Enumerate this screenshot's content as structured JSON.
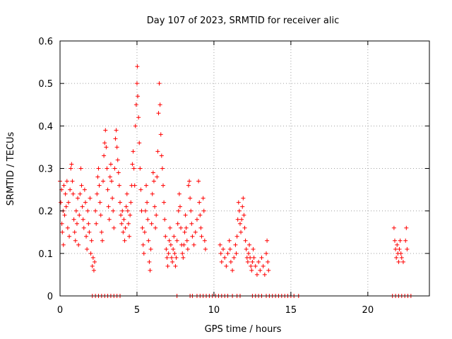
{
  "chart_data": {
    "type": "scatter",
    "title": "Day 107 of 2023, SRMTID for receiver alic",
    "xlabel": "GPS time / hours",
    "ylabel": "SRMTID / TECUs",
    "xlim": [
      0,
      24
    ],
    "ylim": [
      0,
      0.6
    ],
    "x_ticks": [
      0,
      5,
      10,
      15,
      20
    ],
    "x_tick_labels": [
      "0",
      "5",
      "10",
      "15",
      "20"
    ],
    "y_ticks": [
      0,
      0.1,
      0.2,
      0.3,
      0.4,
      0.5,
      0.6
    ],
    "y_tick_labels": [
      "0",
      "0.1",
      "0.2",
      "0.3",
      "0.4",
      "0.5",
      "0.6"
    ],
    "grid": true,
    "marker": "+",
    "color": "#ff0000",
    "series": [
      {
        "name": "SRMTID",
        "points": [
          [
            0.0,
            0.27
          ],
          [
            0.05,
            0.22
          ],
          [
            0.1,
            0.25
          ],
          [
            0.12,
            0.17
          ],
          [
            0.15,
            0.15
          ],
          [
            0.2,
            0.2
          ],
          [
            0.22,
            0.12
          ],
          [
            0.25,
            0.26
          ],
          [
            0.3,
            0.19
          ],
          [
            0.35,
            0.24
          ],
          [
            0.4,
            0.21
          ],
          [
            0.45,
            0.27
          ],
          [
            0.5,
            0.16
          ],
          [
            0.55,
            0.22
          ],
          [
            0.6,
            0.14
          ],
          [
            0.65,
            0.25
          ],
          [
            0.7,
            0.3
          ],
          [
            0.75,
            0.31
          ],
          [
            0.8,
            0.27
          ],
          [
            0.85,
            0.24
          ],
          [
            0.9,
            0.18
          ],
          [
            0.95,
            0.15
          ],
          [
            1.0,
            0.13
          ],
          [
            1.05,
            0.2
          ],
          [
            1.1,
            0.17
          ],
          [
            1.15,
            0.23
          ],
          [
            1.2,
            0.12
          ],
          [
            1.25,
            0.19
          ],
          [
            1.3,
            0.24
          ],
          [
            1.35,
            0.3
          ],
          [
            1.4,
            0.26
          ],
          [
            1.45,
            0.21
          ],
          [
            1.5,
            0.18
          ],
          [
            1.55,
            0.16
          ],
          [
            1.6,
            0.25
          ],
          [
            1.65,
            0.22
          ],
          [
            1.7,
            0.14
          ],
          [
            1.75,
            0.11
          ],
          [
            1.8,
            0.2
          ],
          [
            1.85,
            0.17
          ],
          [
            1.9,
            0.15
          ],
          [
            1.95,
            0.23
          ],
          [
            2.0,
            0.1
          ],
          [
            2.05,
            0.13
          ],
          [
            2.1,
            0.07
          ],
          [
            2.15,
            0.09
          ],
          [
            2.2,
            0.06
          ],
          [
            2.25,
            0.08
          ],
          [
            2.3,
            0.2
          ],
          [
            2.35,
            0.17
          ],
          [
            2.4,
            0.24
          ],
          [
            2.45,
            0.28
          ],
          [
            2.5,
            0.3
          ],
          [
            2.55,
            0.26
          ],
          [
            2.6,
            0.22
          ],
          [
            2.65,
            0.19
          ],
          [
            2.7,
            0.15
          ],
          [
            2.75,
            0.13
          ],
          [
            2.8,
            0.27
          ],
          [
            2.85,
            0.33
          ],
          [
            2.9,
            0.36
          ],
          [
            2.95,
            0.39
          ],
          [
            3.0,
            0.35
          ],
          [
            3.05,
            0.3
          ],
          [
            3.1,
            0.25
          ],
          [
            3.15,
            0.21
          ],
          [
            3.2,
            0.18
          ],
          [
            3.25,
            0.28
          ],
          [
            3.3,
            0.31
          ],
          [
            3.35,
            0.27
          ],
          [
            3.4,
            0.23
          ],
          [
            3.45,
            0.2
          ],
          [
            3.5,
            0.16
          ],
          [
            3.55,
            0.3
          ],
          [
            3.6,
            0.37
          ],
          [
            3.65,
            0.39
          ],
          [
            3.7,
            0.35
          ],
          [
            3.75,
            0.32
          ],
          [
            3.8,
            0.29
          ],
          [
            3.85,
            0.26
          ],
          [
            3.9,
            0.22
          ],
          [
            3.95,
            0.19
          ],
          [
            4.0,
            0.17
          ],
          [
            4.05,
            0.2
          ],
          [
            4.1,
            0.15
          ],
          [
            4.15,
            0.18
          ],
          [
            4.2,
            0.13
          ],
          [
            4.25,
            0.16
          ],
          [
            4.3,
            0.21
          ],
          [
            4.35,
            0.24
          ],
          [
            4.4,
            0.2
          ],
          [
            4.45,
            0.17
          ],
          [
            4.5,
            0.14
          ],
          [
            4.55,
            0.19
          ],
          [
            4.6,
            0.22
          ],
          [
            4.65,
            0.26
          ],
          [
            4.7,
            0.31
          ],
          [
            4.75,
            0.34
          ],
          [
            4.8,
            0.3
          ],
          [
            4.85,
            0.26
          ],
          [
            4.9,
            0.4
          ],
          [
            4.95,
            0.45
          ],
          [
            5.0,
            0.5
          ],
          [
            5.02,
            0.54
          ],
          [
            5.05,
            0.47
          ],
          [
            5.1,
            0.42
          ],
          [
            5.15,
            0.36
          ],
          [
            5.2,
            0.3
          ],
          [
            5.25,
            0.25
          ],
          [
            5.3,
            0.2
          ],
          [
            5.35,
            0.16
          ],
          [
            5.4,
            0.12
          ],
          [
            5.45,
            0.1
          ],
          [
            5.5,
            0.15
          ],
          [
            5.55,
            0.2
          ],
          [
            5.6,
            0.26
          ],
          [
            5.65,
            0.22
          ],
          [
            5.7,
            0.18
          ],
          [
            5.75,
            0.13
          ],
          [
            5.8,
            0.08
          ],
          [
            5.85,
            0.06
          ],
          [
            5.9,
            0.11
          ],
          [
            5.95,
            0.17
          ],
          [
            6.0,
            0.24
          ],
          [
            6.05,
            0.29
          ],
          [
            6.1,
            0.27
          ],
          [
            6.15,
            0.21
          ],
          [
            6.2,
            0.16
          ],
          [
            6.25,
            0.19
          ],
          [
            6.3,
            0.28
          ],
          [
            6.35,
            0.34
          ],
          [
            6.4,
            0.43
          ],
          [
            6.45,
            0.5
          ],
          [
            6.5,
            0.45
          ],
          [
            6.55,
            0.38
          ],
          [
            6.6,
            0.33
          ],
          [
            6.65,
            0.3
          ],
          [
            6.7,
            0.26
          ],
          [
            6.75,
            0.22
          ],
          [
            6.8,
            0.18
          ],
          [
            6.85,
            0.14
          ],
          [
            6.9,
            0.11
          ],
          [
            6.95,
            0.09
          ],
          [
            7.0,
            0.07
          ],
          [
            7.05,
            0.1
          ],
          [
            7.1,
            0.13
          ],
          [
            7.15,
            0.16
          ],
          [
            7.2,
            0.12
          ],
          [
            7.25,
            0.09
          ],
          [
            7.3,
            0.08
          ],
          [
            7.35,
            0.11
          ],
          [
            7.4,
            0.14
          ],
          [
            7.45,
            0.1
          ],
          [
            7.5,
            0.07
          ],
          [
            7.55,
            0.09
          ],
          [
            7.6,
            0.13
          ],
          [
            7.65,
            0.17
          ],
          [
            7.7,
            0.2
          ],
          [
            7.75,
            0.24
          ],
          [
            7.8,
            0.21
          ],
          [
            7.85,
            0.16
          ],
          [
            7.9,
            0.12
          ],
          [
            7.95,
            0.1
          ],
          [
            8.0,
            0.09
          ],
          [
            8.05,
            0.12
          ],
          [
            8.1,
            0.15
          ],
          [
            8.15,
            0.19
          ],
          [
            8.2,
            0.16
          ],
          [
            8.25,
            0.13
          ],
          [
            8.3,
            0.11
          ],
          [
            8.35,
            0.26
          ],
          [
            8.4,
            0.27
          ],
          [
            8.45,
            0.23
          ],
          [
            8.5,
            0.2
          ],
          [
            8.55,
            0.17
          ],
          [
            8.6,
            0.14
          ],
          [
            8.7,
            0.12
          ],
          [
            8.8,
            0.15
          ],
          [
            8.9,
            0.18
          ],
          [
            9.0,
            0.27
          ],
          [
            9.05,
            0.22
          ],
          [
            9.1,
            0.19
          ],
          [
            9.15,
            0.16
          ],
          [
            9.2,
            0.14
          ],
          [
            9.3,
            0.23
          ],
          [
            9.35,
            0.2
          ],
          [
            9.4,
            0.13
          ],
          [
            9.45,
            0.11
          ],
          [
            10.4,
            0.12
          ],
          [
            10.45,
            0.1
          ],
          [
            10.5,
            0.08
          ],
          [
            10.6,
            0.11
          ],
          [
            10.7,
            0.09
          ],
          [
            10.8,
            0.07
          ],
          [
            10.9,
            0.1
          ],
          [
            11.0,
            0.13
          ],
          [
            11.05,
            0.11
          ],
          [
            11.1,
            0.08
          ],
          [
            11.2,
            0.06
          ],
          [
            11.3,
            0.09
          ],
          [
            11.4,
            0.12
          ],
          [
            11.45,
            0.1
          ],
          [
            11.5,
            0.14
          ],
          [
            11.55,
            0.18
          ],
          [
            11.6,
            0.22
          ],
          [
            11.65,
            0.2
          ],
          [
            11.7,
            0.17
          ],
          [
            11.75,
            0.15
          ],
          [
            11.8,
            0.18
          ],
          [
            11.85,
            0.21
          ],
          [
            11.9,
            0.23
          ],
          [
            11.95,
            0.19
          ],
          [
            12.0,
            0.16
          ],
          [
            12.05,
            0.13
          ],
          [
            12.1,
            0.11
          ],
          [
            12.15,
            0.09
          ],
          [
            12.2,
            0.08
          ],
          [
            12.25,
            0.1
          ],
          [
            12.3,
            0.12
          ],
          [
            12.35,
            0.09
          ],
          [
            12.4,
            0.07
          ],
          [
            12.45,
            0.06
          ],
          [
            12.5,
            0.08
          ],
          [
            12.55,
            0.11
          ],
          [
            12.6,
            0.09
          ],
          [
            12.7,
            0.07
          ],
          [
            12.8,
            0.05
          ],
          [
            12.9,
            0.08
          ],
          [
            13.0,
            0.06
          ],
          [
            13.1,
            0.09
          ],
          [
            13.2,
            0.07
          ],
          [
            13.3,
            0.05
          ],
          [
            13.4,
            0.1
          ],
          [
            13.45,
            0.13
          ],
          [
            13.5,
            0.08
          ],
          [
            13.55,
            0.06
          ],
          [
            21.7,
            0.16
          ],
          [
            21.75,
            0.13
          ],
          [
            21.8,
            0.11
          ],
          [
            21.85,
            0.09
          ],
          [
            21.9,
            0.12
          ],
          [
            21.95,
            0.1
          ],
          [
            22.0,
            0.08
          ],
          [
            22.05,
            0.11
          ],
          [
            22.1,
            0.13
          ],
          [
            22.15,
            0.1
          ],
          [
            22.2,
            0.09
          ],
          [
            22.3,
            0.08
          ],
          [
            22.45,
            0.13
          ],
          [
            22.5,
            0.16
          ],
          [
            22.55,
            0.11
          ],
          [
            2.1,
            0.0
          ],
          [
            2.3,
            0.0
          ],
          [
            2.5,
            0.0
          ],
          [
            2.7,
            0.0
          ],
          [
            2.9,
            0.0
          ],
          [
            3.1,
            0.0
          ],
          [
            3.3,
            0.0
          ],
          [
            3.5,
            0.0
          ],
          [
            3.7,
            0.0
          ],
          [
            3.9,
            0.0
          ],
          [
            7.6,
            0.0
          ],
          [
            8.45,
            0.0
          ],
          [
            8.6,
            0.0
          ],
          [
            8.9,
            0.0
          ],
          [
            9.1,
            0.0
          ],
          [
            9.3,
            0.0
          ],
          [
            9.5,
            0.0
          ],
          [
            9.7,
            0.0
          ],
          [
            9.9,
            0.0
          ],
          [
            10.1,
            0.0
          ],
          [
            10.3,
            0.0
          ],
          [
            10.5,
            0.0
          ],
          [
            10.7,
            0.0
          ],
          [
            10.9,
            0.0
          ],
          [
            11.2,
            0.0
          ],
          [
            11.5,
            0.0
          ],
          [
            11.7,
            0.0
          ],
          [
            12.5,
            0.0
          ],
          [
            12.7,
            0.0
          ],
          [
            12.9,
            0.0
          ],
          [
            13.1,
            0.0
          ],
          [
            13.4,
            0.0
          ],
          [
            13.6,
            0.0
          ],
          [
            13.8,
            0.0
          ],
          [
            14.0,
            0.0
          ],
          [
            14.2,
            0.0
          ],
          [
            14.4,
            0.0
          ],
          [
            14.6,
            0.0
          ],
          [
            14.8,
            0.0
          ],
          [
            15.0,
            0.0
          ],
          [
            15.2,
            0.0
          ],
          [
            15.5,
            0.0
          ],
          [
            21.6,
            0.0
          ],
          [
            21.8,
            0.0
          ],
          [
            22.0,
            0.0
          ],
          [
            22.2,
            0.0
          ],
          [
            22.4,
            0.0
          ],
          [
            22.6,
            0.0
          ],
          [
            22.8,
            0.0
          ]
        ]
      }
    ]
  }
}
